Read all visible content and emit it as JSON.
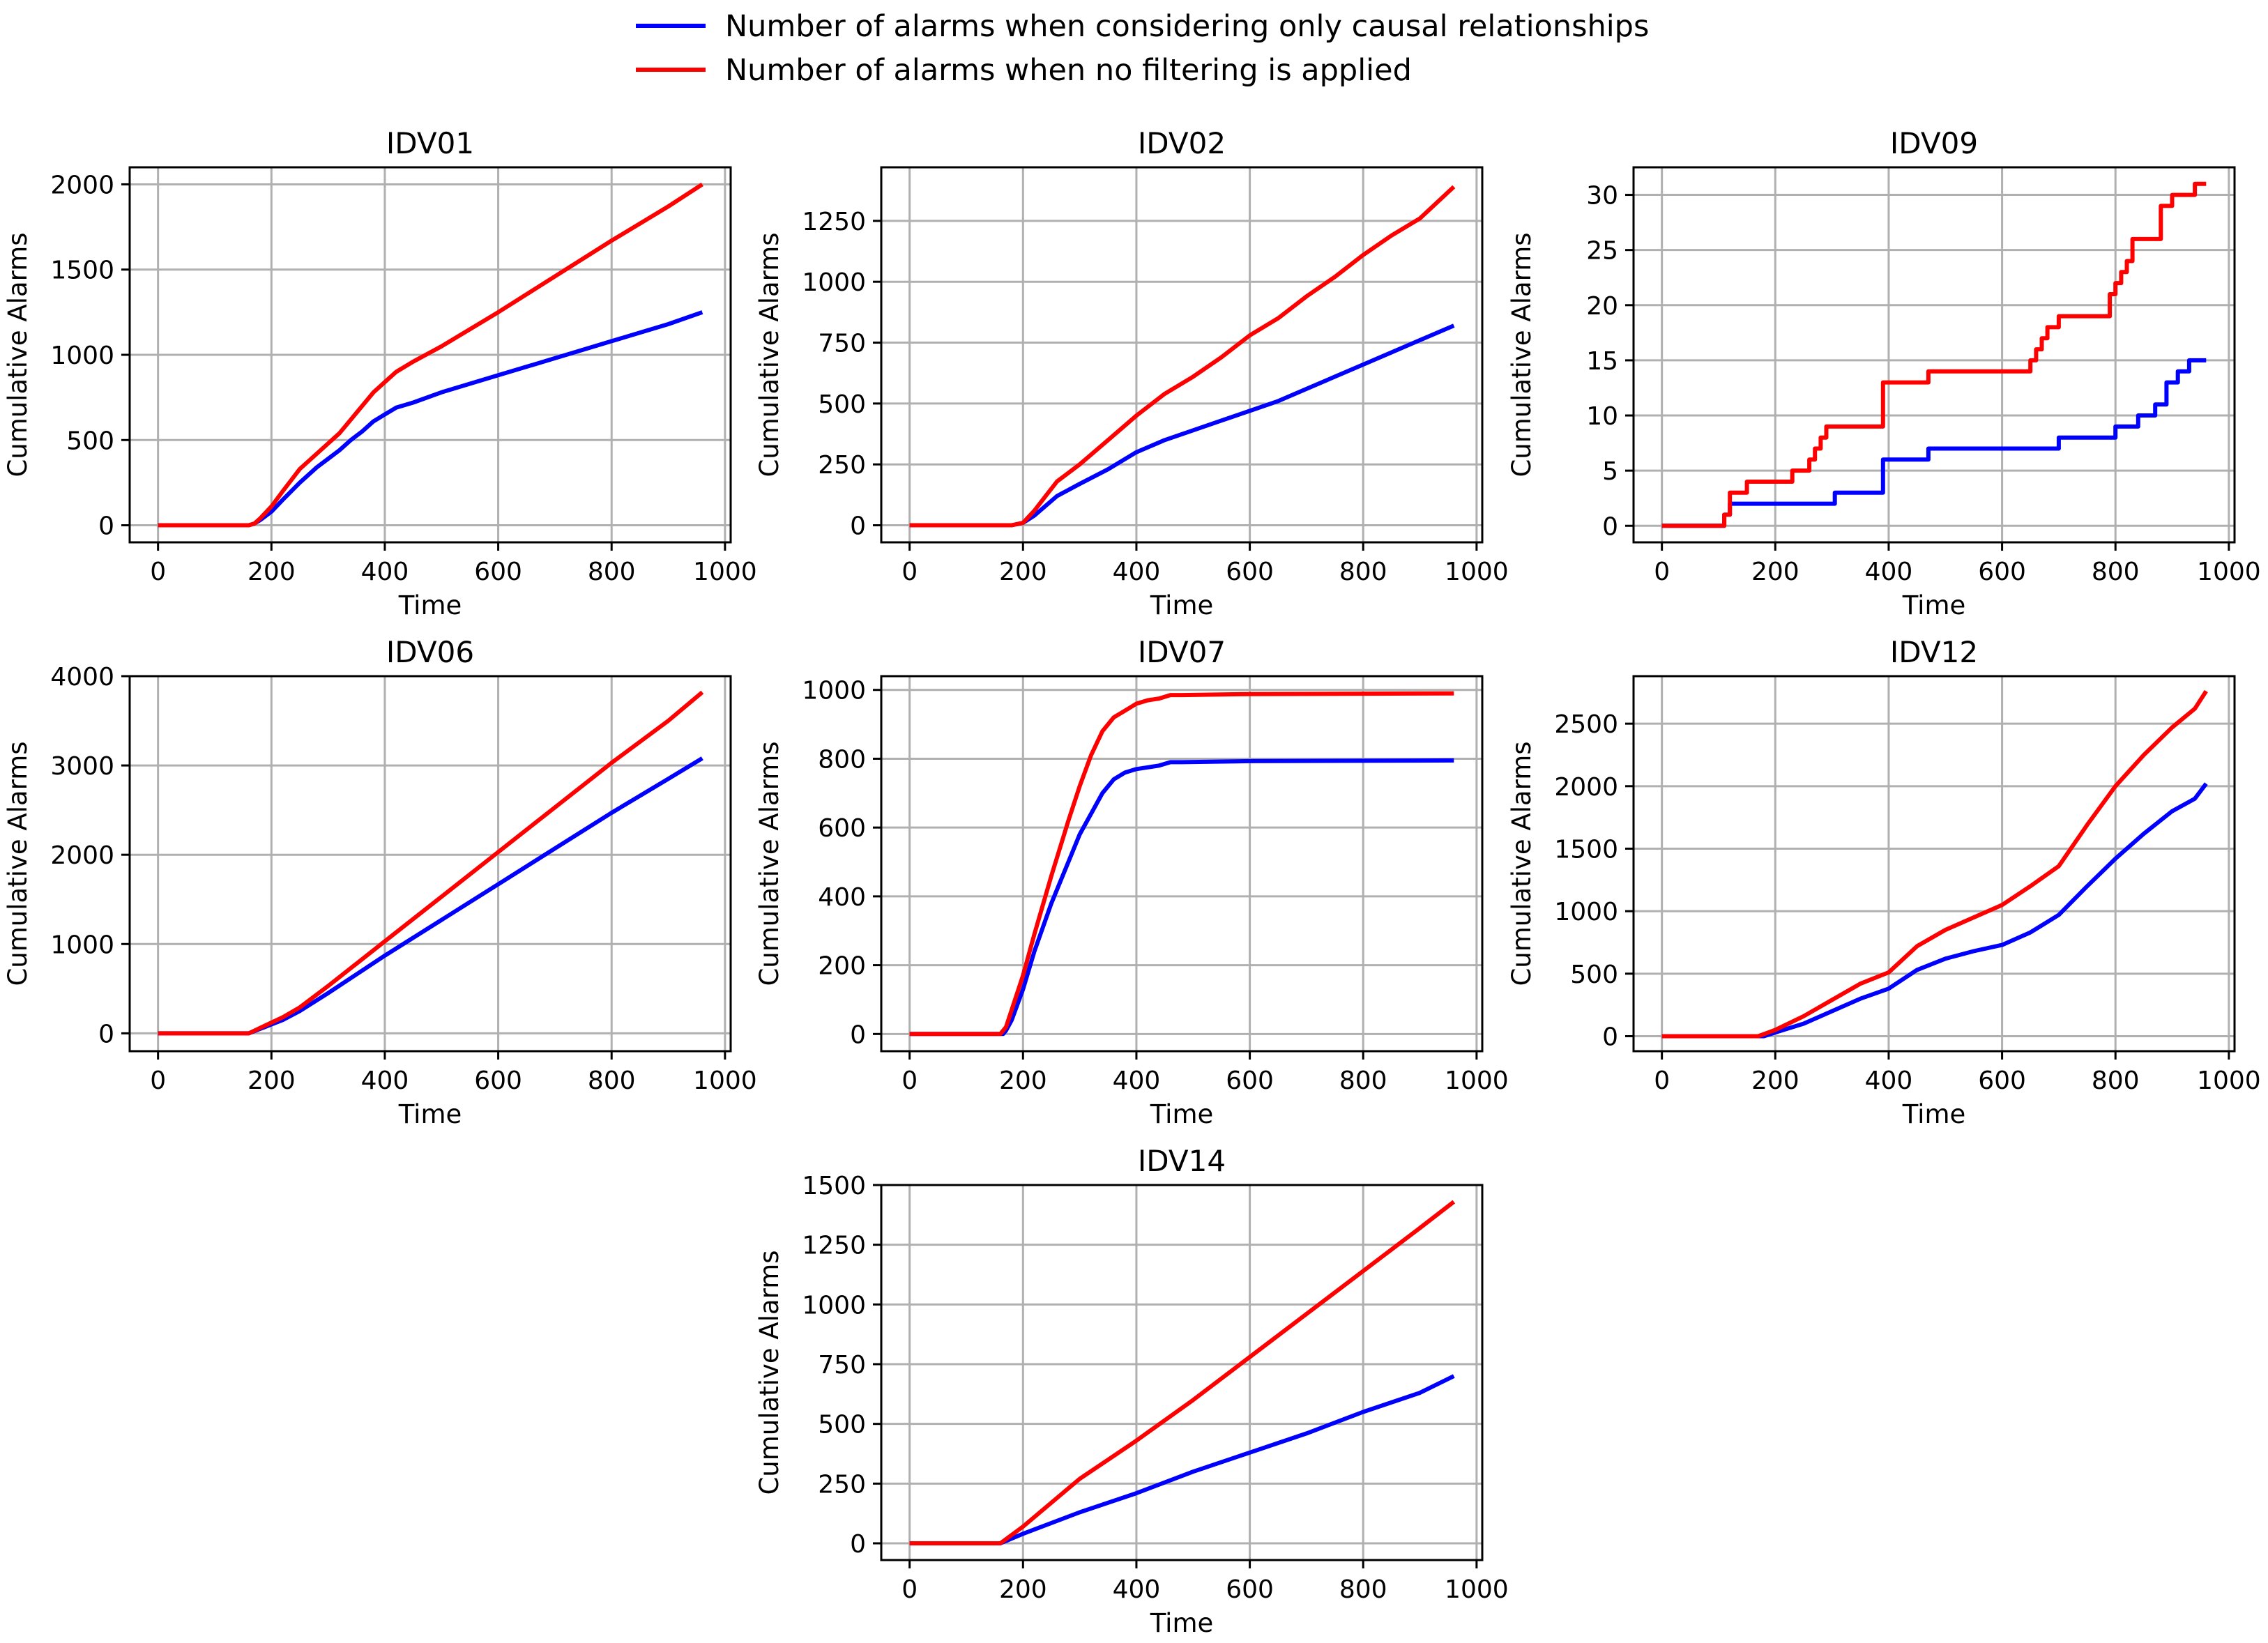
{
  "legend": {
    "items": [
      {
        "label": "Number of alarms when considering only causal relationships",
        "color": "#0000ff"
      },
      {
        "label": "Number of alarms when no filtering is applied",
        "color": "#ff0000"
      }
    ]
  },
  "chart_data": [
    {
      "type": "line",
      "title": "IDV01",
      "xlabel": "Time",
      "ylabel": "Cumulative Alarms",
      "xlim": [
        -50,
        1010
      ],
      "ylim": [
        -100,
        2100
      ],
      "xticks": [
        0,
        200,
        400,
        600,
        800,
        1000
      ],
      "yticks": [
        0,
        500,
        1000,
        1500,
        2000
      ],
      "grid": true,
      "series": [
        {
          "name": "Number of alarms when considering only causal relationships",
          "color": "#0000ff",
          "x": [
            0,
            160,
            170,
            180,
            200,
            220,
            250,
            280,
            300,
            320,
            340,
            360,
            380,
            400,
            420,
            450,
            500,
            600,
            700,
            800,
            900,
            960
          ],
          "y": [
            0,
            0,
            10,
            30,
            80,
            150,
            250,
            340,
            390,
            440,
            500,
            550,
            610,
            650,
            690,
            720,
            780,
            880,
            980,
            1080,
            1180,
            1250
          ]
        },
        {
          "name": "Number of alarms when no filtering is applied",
          "color": "#ff0000",
          "x": [
            0,
            160,
            170,
            180,
            200,
            220,
            250,
            280,
            300,
            320,
            340,
            360,
            380,
            400,
            420,
            450,
            500,
            600,
            700,
            800,
            900,
            960
          ],
          "y": [
            0,
            0,
            10,
            40,
            110,
            200,
            330,
            420,
            480,
            540,
            620,
            700,
            780,
            840,
            900,
            960,
            1050,
            1250,
            1460,
            1670,
            1870,
            2000
          ]
        }
      ]
    },
    {
      "type": "line",
      "title": "IDV02",
      "xlabel": "Time",
      "ylabel": "Cumulative Alarms",
      "xlim": [
        -50,
        1010
      ],
      "ylim": [
        -70,
        1470
      ],
      "xticks": [
        0,
        200,
        400,
        600,
        800,
        1000
      ],
      "yticks": [
        0,
        250,
        500,
        750,
        1000,
        1250
      ],
      "grid": true,
      "series": [
        {
          "name": "Number of alarms when considering only causal relationships",
          "color": "#0000ff",
          "x": [
            0,
            180,
            200,
            220,
            240,
            260,
            300,
            350,
            400,
            450,
            500,
            550,
            600,
            650,
            700,
            750,
            800,
            850,
            900,
            960
          ],
          "y": [
            0,
            0,
            10,
            40,
            80,
            120,
            170,
            230,
            300,
            350,
            390,
            430,
            470,
            510,
            560,
            610,
            660,
            710,
            760,
            820
          ]
        },
        {
          "name": "Number of alarms when no filtering is applied",
          "color": "#ff0000",
          "x": [
            0,
            180,
            200,
            220,
            240,
            260,
            300,
            350,
            400,
            450,
            500,
            550,
            600,
            650,
            700,
            750,
            800,
            850,
            900,
            960
          ],
          "y": [
            0,
            0,
            10,
            60,
            120,
            180,
            250,
            350,
            450,
            540,
            610,
            690,
            780,
            850,
            940,
            1020,
            1110,
            1190,
            1260,
            1390
          ]
        }
      ]
    },
    {
      "type": "line",
      "title": "IDV09",
      "xlabel": "Time",
      "ylabel": "Cumulative Alarms",
      "xlim": [
        -50,
        1010
      ],
      "ylim": [
        -1.5,
        32.5
      ],
      "xticks": [
        0,
        200,
        400,
        600,
        800,
        1000
      ],
      "yticks": [
        0,
        5,
        10,
        15,
        20,
        25,
        30
      ],
      "grid": true,
      "series": [
        {
          "name": "Number of alarms when considering only causal relationships",
          "color": "#0000ff",
          "x": [
            0,
            110,
            110,
            120,
            120,
            305,
            305,
            390,
            390,
            470,
            470,
            700,
            700,
            800,
            800,
            840,
            840,
            870,
            870,
            890,
            890,
            910,
            910,
            930,
            930,
            960
          ],
          "y": [
            0,
            0,
            1,
            1,
            2,
            2,
            3,
            3,
            6,
            6,
            7,
            7,
            8,
            8,
            9,
            9,
            10,
            10,
            11,
            11,
            13,
            13,
            14,
            14,
            15,
            15
          ]
        },
        {
          "name": "Number of alarms when no filtering is applied",
          "color": "#ff0000",
          "x": [
            0,
            110,
            110,
            120,
            120,
            150,
            150,
            230,
            230,
            260,
            260,
            270,
            270,
            280,
            280,
            290,
            290,
            300,
            300,
            390,
            390,
            470,
            470,
            650,
            650,
            660,
            660,
            670,
            670,
            680,
            680,
            700,
            700,
            790,
            790,
            800,
            800,
            810,
            810,
            820,
            820,
            830,
            830,
            850,
            850,
            880,
            880,
            900,
            900,
            940,
            940,
            960
          ],
          "y": [
            0,
            0,
            1,
            1,
            3,
            3,
            4,
            4,
            5,
            5,
            6,
            6,
            7,
            7,
            8,
            8,
            9,
            9,
            9,
            9,
            13,
            13,
            14,
            14,
            15,
            15,
            16,
            16,
            17,
            17,
            18,
            18,
            19,
            19,
            21,
            21,
            22,
            22,
            23,
            23,
            24,
            24,
            26,
            26,
            26,
            26,
            29,
            29,
            30,
            30,
            31,
            31
          ]
        }
      ]
    },
    {
      "type": "line",
      "title": "IDV06",
      "xlabel": "Time",
      "ylabel": "Cumulative Alarms",
      "xlim": [
        -50,
        1010
      ],
      "ylim": [
        -200,
        4000
      ],
      "xticks": [
        0,
        200,
        400,
        600,
        800,
        1000
      ],
      "yticks": [
        0,
        1000,
        2000,
        3000,
        4000
      ],
      "grid": true,
      "series": [
        {
          "name": "Number of alarms when considering only causal relationships",
          "color": "#0000ff",
          "x": [
            0,
            160,
            180,
            200,
            220,
            250,
            300,
            400,
            500,
            600,
            700,
            800,
            900,
            960
          ],
          "y": [
            0,
            0,
            50,
            100,
            150,
            250,
            450,
            870,
            1270,
            1670,
            2070,
            2470,
            2850,
            3080
          ]
        },
        {
          "name": "Number of alarms when no filtering is applied",
          "color": "#ff0000",
          "x": [
            0,
            160,
            180,
            200,
            220,
            250,
            300,
            400,
            500,
            600,
            700,
            800,
            900,
            960
          ],
          "y": [
            0,
            0,
            60,
            120,
            180,
            290,
            530,
            1030,
            1530,
            2030,
            2530,
            3030,
            3500,
            3820
          ]
        }
      ]
    },
    {
      "type": "line",
      "title": "IDV07",
      "xlabel": "Time",
      "ylabel": "Cumulative Alarms",
      "xlim": [
        -50,
        1010
      ],
      "ylim": [
        -50,
        1040
      ],
      "xticks": [
        0,
        200,
        400,
        600,
        800,
        1000
      ],
      "yticks": [
        0,
        200,
        400,
        600,
        800,
        1000
      ],
      "grid": true,
      "series": [
        {
          "name": "Number of alarms when considering only causal relationships",
          "color": "#0000ff",
          "x": [
            0,
            165,
            170,
            180,
            200,
            220,
            250,
            280,
            300,
            320,
            340,
            360,
            380,
            400,
            420,
            440,
            460,
            480,
            600,
            960
          ],
          "y": [
            0,
            0,
            10,
            40,
            130,
            240,
            380,
            500,
            580,
            640,
            700,
            740,
            760,
            770,
            775,
            780,
            790,
            790,
            793,
            795
          ]
        },
        {
          "name": "Number of alarms when no filtering is applied",
          "color": "#ff0000",
          "x": [
            0,
            160,
            170,
            180,
            200,
            220,
            250,
            280,
            300,
            320,
            340,
            360,
            380,
            400,
            420,
            440,
            460,
            480,
            600,
            960
          ],
          "y": [
            0,
            0,
            20,
            70,
            170,
            290,
            460,
            620,
            720,
            810,
            880,
            920,
            940,
            960,
            970,
            975,
            985,
            985,
            988,
            990
          ]
        }
      ]
    },
    {
      "type": "line",
      "title": "IDV12",
      "xlabel": "Time",
      "ylabel": "Cumulative Alarms",
      "xlim": [
        -50,
        1010
      ],
      "ylim": [
        -120,
        2880
      ],
      "xticks": [
        0,
        200,
        400,
        600,
        800,
        1000
      ],
      "yticks": [
        0,
        500,
        1000,
        1500,
        2000,
        2500
      ],
      "grid": true,
      "series": [
        {
          "name": "Number of alarms when considering only causal relationships",
          "color": "#0000ff",
          "x": [
            0,
            180,
            200,
            250,
            300,
            350,
            400,
            450,
            500,
            550,
            600,
            650,
            700,
            750,
            800,
            850,
            900,
            940,
            960
          ],
          "y": [
            0,
            0,
            30,
            100,
            200,
            300,
            380,
            530,
            620,
            680,
            730,
            830,
            970,
            1200,
            1420,
            1620,
            1800,
            1900,
            2020
          ]
        },
        {
          "name": "Number of alarms when no filtering is applied",
          "color": "#ff0000",
          "x": [
            0,
            170,
            200,
            250,
            300,
            350,
            400,
            450,
            500,
            550,
            600,
            650,
            700,
            750,
            800,
            850,
            900,
            940,
            960
          ],
          "y": [
            0,
            0,
            50,
            160,
            290,
            420,
            510,
            720,
            850,
            950,
            1050,
            1200,
            1360,
            1690,
            2000,
            2250,
            2470,
            2620,
            2760
          ]
        }
      ]
    },
    {
      "type": "line",
      "title": "IDV14",
      "xlabel": "Time",
      "ylabel": "Cumulative Alarms",
      "xlim": [
        -50,
        1010
      ],
      "ylim": [
        -70,
        1500
      ],
      "xticks": [
        0,
        200,
        400,
        600,
        800,
        1000
      ],
      "yticks": [
        0,
        250,
        500,
        750,
        1000,
        1250,
        1500
      ],
      "grid": true,
      "series": [
        {
          "name": "Number of alarms when considering only causal relationships",
          "color": "#0000ff",
          "x": [
            0,
            160,
            200,
            300,
            400,
            500,
            600,
            700,
            800,
            900,
            960
          ],
          "y": [
            0,
            0,
            40,
            130,
            210,
            300,
            380,
            460,
            550,
            630,
            700
          ]
        },
        {
          "name": "Number of alarms when no filtering is applied",
          "color": "#ff0000",
          "x": [
            0,
            160,
            200,
            300,
            400,
            500,
            600,
            700,
            800,
            900,
            960
          ],
          "y": [
            0,
            0,
            70,
            270,
            430,
            600,
            780,
            960,
            1140,
            1320,
            1430
          ]
        }
      ]
    }
  ]
}
